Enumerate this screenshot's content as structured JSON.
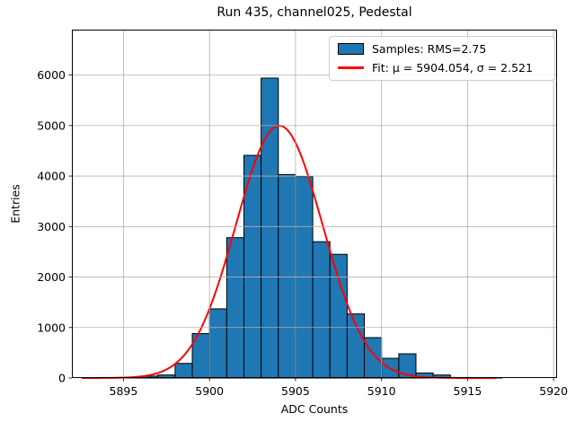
{
  "chart_data": {
    "type": "bar",
    "subtype": "histogram",
    "title": "Run 435, channel025, Pedestal",
    "xlabel": "ADC Counts",
    "ylabel": "Entries",
    "bin_start": 5893,
    "bin_width": 1,
    "counts": [
      2,
      6,
      15,
      38,
      60,
      290,
      880,
      1370,
      2780,
      4410,
      5940,
      4030,
      3990,
      2700,
      2450,
      1270,
      800,
      390,
      480,
      100,
      60,
      10,
      5,
      3
    ],
    "xticks": [
      5895,
      5900,
      5905,
      5910,
      5915,
      5920
    ],
    "yticks": [
      0,
      1000,
      2000,
      3000,
      4000,
      5000,
      6000
    ],
    "xlim": [
      5892.0,
      5920.2
    ],
    "ylim": [
      0,
      6900
    ],
    "grid": true,
    "fit": {
      "type": "gaussian",
      "mu": 5904.054,
      "sigma": 2.521,
      "amplitude": 5000,
      "x_min": 5892.6,
      "x_max": 5916.6
    },
    "legend": {
      "position": "upper right",
      "entries": [
        {
          "label": "Samples: RMS=2.75",
          "marker": "patch",
          "color": "#1f77b4"
        },
        {
          "label": "Fit: μ = 5904.054, σ = 2.521",
          "marker": "line",
          "color": "#ff0000"
        }
      ]
    },
    "colors": {
      "bar_fill": "#1f77b4",
      "bar_edge": "#000000",
      "fit_line": "#ff0000",
      "grid": "#b0b0b0",
      "spine": "#000000"
    }
  }
}
